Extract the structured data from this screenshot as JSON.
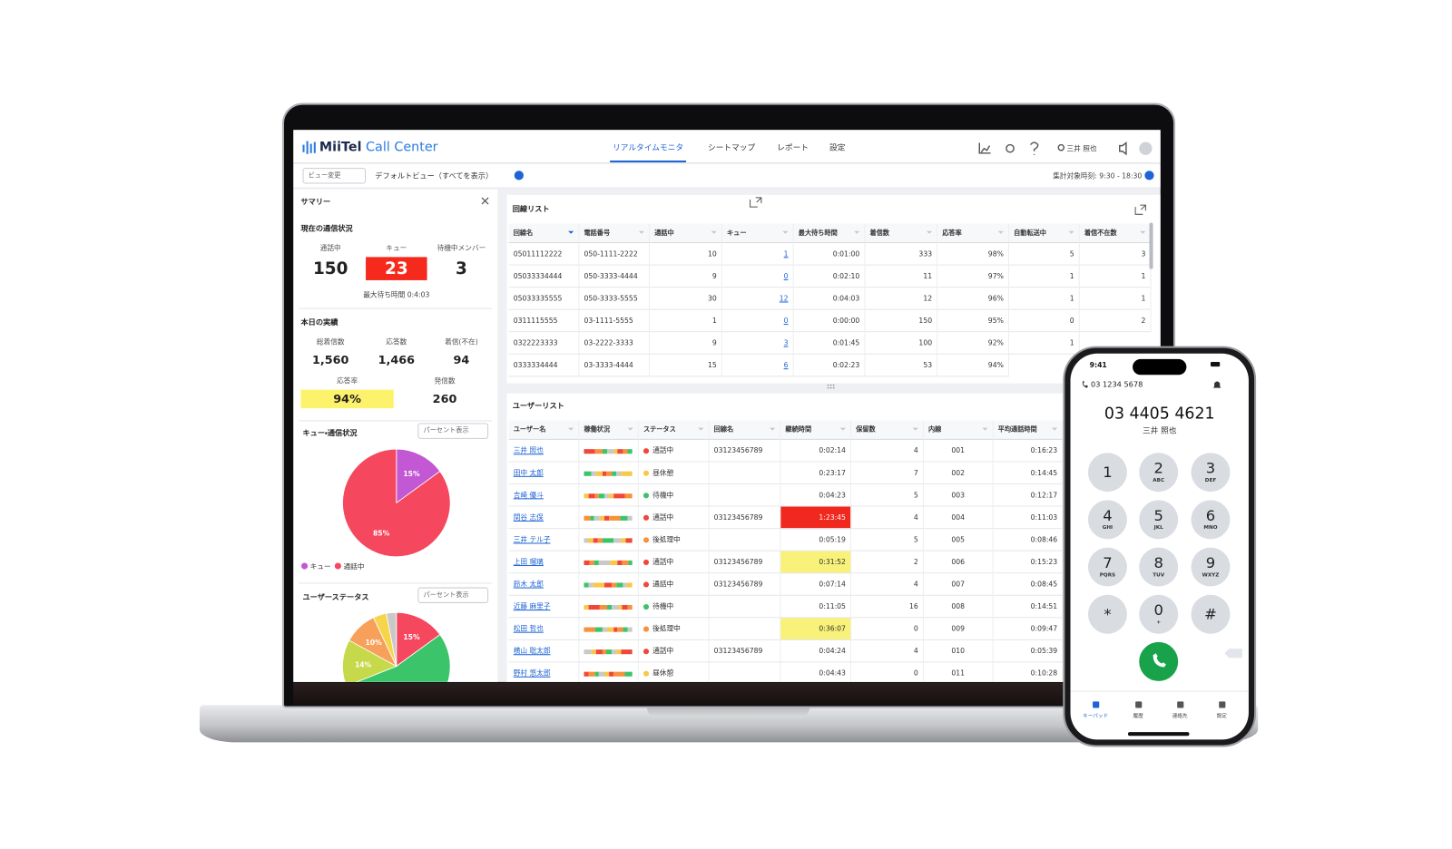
{
  "nav": {
    "logo": "MiiTel",
    "product": "Call Center",
    "tabs": [
      "リアルタイムモニタ",
      "シートマップ",
      "レポート",
      "設定"
    ],
    "active_tab": 0,
    "user": "三井 照也"
  },
  "toolbar": {
    "view_button": "ビュー変更",
    "view_name": "デフォルトビュー（すべてを表示）",
    "period": "集計対象時刻: 9:30 - 18:30"
  },
  "summary": {
    "title": "サマリー",
    "current": {
      "title": "現在の通信状況",
      "stats": [
        {
          "label": "通話中",
          "value": "150"
        },
        {
          "label": "キュー",
          "value": "23",
          "highlight": "#f5291c"
        },
        {
          "label": "待機中メンバー",
          "value": "3"
        }
      ],
      "max_wait": "最大待ち時間 0:4:03"
    },
    "today": {
      "title": "本日の実績",
      "stats": [
        {
          "label": "総着信数",
          "value": "1,560"
        },
        {
          "label": "応答数",
          "value": "1,466"
        },
        {
          "label": "着信(不在)",
          "value": "94"
        },
        {
          "label": "応答率",
          "value": "94%",
          "highlight": "#fdf26b"
        },
        {
          "label": "発信数",
          "value": "260"
        }
      ]
    }
  },
  "queue_chart": {
    "title": "キュー・通信状況",
    "mode": "パーセント表示",
    "type": "pie",
    "categories": [
      "キュー",
      "通話中"
    ],
    "values": [
      15,
      85
    ],
    "value_labels": [
      "15%",
      "85%"
    ],
    "colors": [
      "#c258d4",
      "#f5475e"
    ],
    "legend": true
  },
  "status_chart": {
    "title": "ユーザーステータス",
    "mode": "パーセント表示",
    "type": "pie",
    "values": [
      15,
      54,
      14,
      10,
      4,
      3
    ],
    "value_labels": [
      "15%",
      null,
      "14%",
      "10%",
      null,
      null
    ],
    "colors": [
      "#f5475e",
      "#3cc46a",
      "#c5d94a",
      "#f7a05a",
      "#f7d54a",
      "#c9c9c9"
    ]
  },
  "line_list": {
    "title": "回線リスト",
    "columns": [
      "回線名",
      "電話番号",
      "通話中",
      "キュー",
      "最大待ち時間",
      "着信数",
      "応答率",
      "自動転送中",
      "着信不在数"
    ],
    "rows": [
      [
        "05011112222",
        "050-1111-2222",
        "10",
        "1",
        "0:01:00",
        "333",
        "98%",
        "5",
        "3"
      ],
      [
        "05033334444",
        "050-3333-4444",
        "9",
        "0",
        "0:02:10",
        "11",
        "97%",
        "1",
        "1"
      ],
      [
        "05033335555",
        "050-3333-5555",
        "30",
        "12",
        "0:04:03",
        "12",
        "96%",
        "1",
        "1"
      ],
      [
        "0311115555",
        "03-1111-5555",
        "1",
        "0",
        "0:00:00",
        "150",
        "95%",
        "0",
        "2"
      ],
      [
        "0322223333",
        "03-2222-3333",
        "9",
        "3",
        "0:01:45",
        "100",
        "92%",
        "1"
      ],
      [
        "0333334444",
        "03-3333-4444",
        "15",
        "6",
        "0:02:23",
        "53",
        "94%"
      ]
    ]
  },
  "user_list": {
    "title": "ユーザーリスト",
    "columns": [
      "ユーザー名",
      "稼働状況",
      "ステータス",
      "回線名",
      "継続時間",
      "保留数",
      "内線",
      "平均通話時間"
    ],
    "status_colors": {
      "通話中": "#f0473c",
      "昼休憩": "#f7c948",
      "待機中": "#3cc46a",
      "後処理中": "#f7913a"
    },
    "rows": [
      {
        "name": "三井 照也",
        "status": "通話中",
        "line": "03123456789",
        "duration": "0:02:14",
        "hold": "4",
        "ext": "001",
        "avg": "0:16:23"
      },
      {
        "name": "田中 太郎",
        "status": "昼休憩",
        "line": null,
        "duration": "0:23:17",
        "hold": "7",
        "ext": "002",
        "avg": "0:14:45"
      },
      {
        "name": "吉崎 優斗",
        "status": "待機中",
        "line": null,
        "duration": "0:04:23",
        "hold": "5",
        "ext": "003",
        "avg": "0:12:17"
      },
      {
        "name": "関谷 志保",
        "status": "通話中",
        "line": "03123456789",
        "duration": "1:23:45",
        "alert": "#f0281e",
        "hold": "4",
        "ext": "004",
        "avg": "0:11:03"
      },
      {
        "name": "三井 テル子",
        "status": "後処理中",
        "line": null,
        "duration": "0:05:19",
        "hold": "5",
        "ext": "005",
        "avg": "0:08:46"
      },
      {
        "name": "上田 瑠璃",
        "status": "通話中",
        "line": "03123456789",
        "duration": "0:31:52",
        "alert": "#f8f17a",
        "hold": "2",
        "ext": "006",
        "avg": "0:15:23"
      },
      {
        "name": "鈴木 太郎",
        "status": "通話中",
        "line": "03123456789",
        "duration": "0:07:14",
        "hold": "4",
        "ext": "007",
        "avg": "0:08:45"
      },
      {
        "name": "近藤 麻里子",
        "status": "待機中",
        "line": null,
        "duration": "0:11:05",
        "hold": "16",
        "ext": "008",
        "avg": "0:14:51"
      },
      {
        "name": "松田 哲也",
        "status": "後処理中",
        "line": null,
        "duration": "0:36:07",
        "alert": "#f8f17a",
        "hold": "0",
        "ext": "009",
        "avg": "0:09:47"
      },
      {
        "name": "横山 聡太郎",
        "status": "通話中",
        "line": "03123456789",
        "duration": "0:04:24",
        "hold": "4",
        "ext": "010",
        "avg": "0:05:39"
      },
      {
        "name": "野村 悠太郎",
        "status": "昼休憩",
        "line": null,
        "duration": "0:04:43",
        "hold": "0",
        "ext": "011",
        "avg": "0:10:28"
      }
    ]
  },
  "phone": {
    "time": "9:41",
    "line": "03 1234 5678",
    "number": "03 4405 4621",
    "name": "三井 照也",
    "keys": [
      {
        "digit": "1"
      },
      {
        "digit": "2",
        "letters": "ABC"
      },
      {
        "digit": "3",
        "letters": "DEF"
      },
      {
        "digit": "4",
        "letters": "GHI"
      },
      {
        "digit": "5",
        "letters": "JKL"
      },
      {
        "digit": "6",
        "letters": "MNO"
      },
      {
        "digit": "7",
        "letters": "PQRS"
      },
      {
        "digit": "8",
        "letters": "TUV"
      },
      {
        "digit": "9",
        "letters": "WXYZ"
      },
      {
        "digit": "*"
      },
      {
        "digit": "0",
        "letters": "+"
      },
      {
        "digit": "#"
      }
    ],
    "tabs": [
      "キーパッド",
      "履歴",
      "連絡先",
      "設定"
    ]
  }
}
